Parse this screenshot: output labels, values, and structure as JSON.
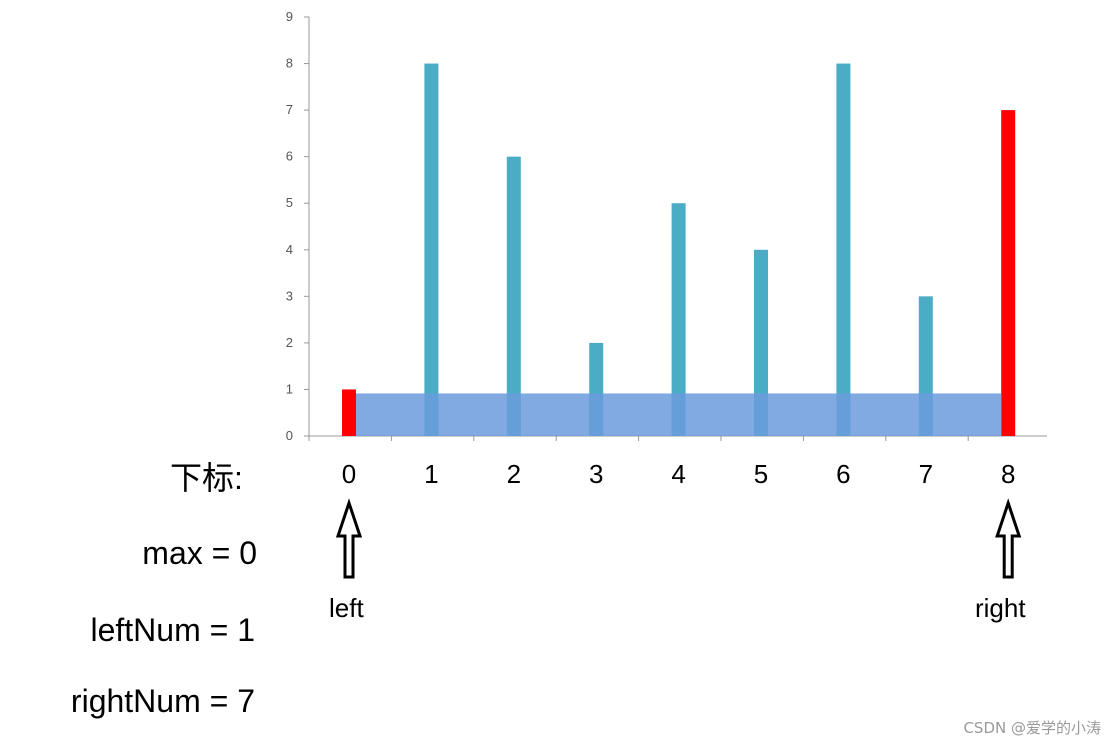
{
  "chart_data": {
    "type": "bar",
    "categories": [
      "0",
      "1",
      "2",
      "3",
      "4",
      "5",
      "6",
      "7",
      "8"
    ],
    "values": [
      1,
      8,
      6,
      2,
      5,
      4,
      8,
      3,
      7
    ],
    "highlighted_indices": [
      0,
      8
    ],
    "ylim": [
      0,
      9
    ],
    "yticks": [
      0,
      1,
      2,
      3,
      4,
      5,
      6,
      7,
      8,
      9
    ],
    "colors": {
      "bar": "#4bacc6",
      "highlight": "#ff0000",
      "area": "#6a9bdc"
    },
    "area": {
      "from_index": 0,
      "to_index": 8,
      "height": 1
    },
    "grid": false
  },
  "labels": {
    "index_label": "下标:",
    "max_line": "max = 0",
    "left_num_line": "leftNum = 1",
    "right_num_line": "rightNum = 7",
    "left_pointer": "left",
    "right_pointer": "right"
  },
  "pointers": {
    "left_index": 0,
    "right_index": 8
  },
  "watermark": "CSDN @爱学的小涛"
}
